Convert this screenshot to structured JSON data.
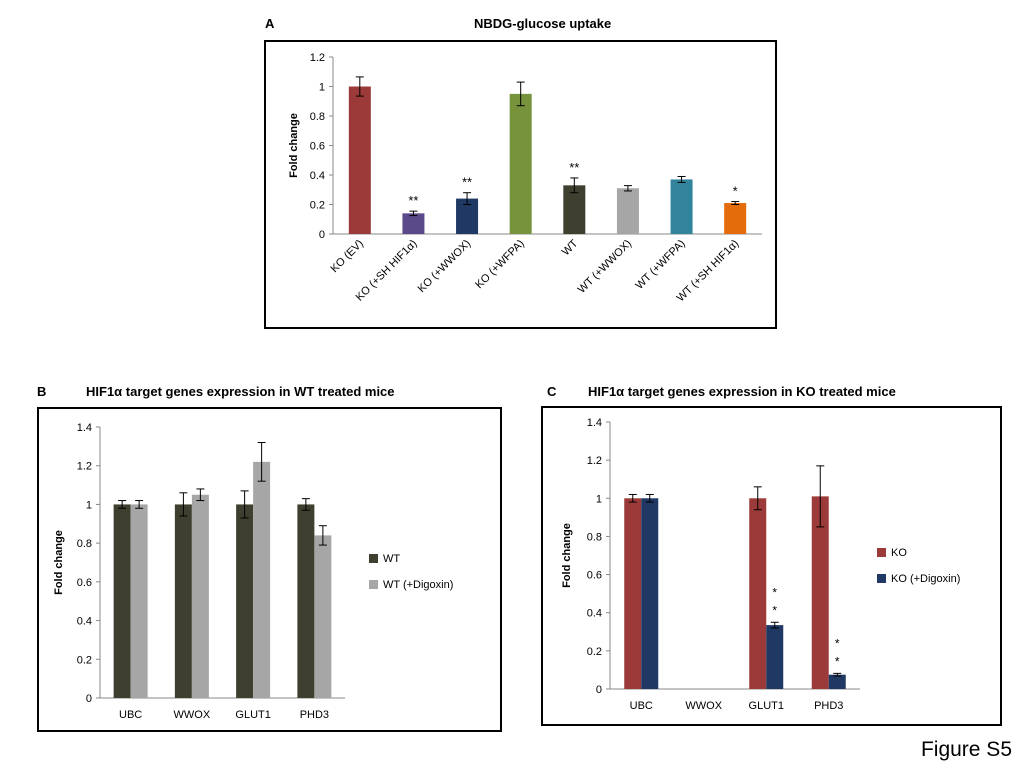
{
  "figure_label": "Figure S5",
  "colors": {
    "ko": "#9b3a38",
    "ko_digoxin": "#1f3864",
    "wt": "#3f3f2f",
    "wt_digoxin": "#a6a6a6",
    "sh_hif1a": "#5b4a8a",
    "wwox": "#1f3864",
    "wfpa": "#77933c",
    "wt_wfpa": "#31849b",
    "wt_sh": "#e46c0a",
    "error_bar": "#000000"
  },
  "chart_data": [
    {
      "panel": "A",
      "type": "bar",
      "title": "NBDG-glucose uptake",
      "xlabel": "",
      "ylabel": "Fold change",
      "ylim": [
        0,
        1.2
      ],
      "yticks": [
        "0",
        "0.2",
        "0.4",
        "0.6",
        "0.8",
        "1",
        "1.2"
      ],
      "grid": false,
      "categories": [
        "KO (EV)",
        "KO (+SH HIF1α)",
        "KO (+WWOX)",
        "KO (+WFPA)",
        "WT",
        "WT (+WWOX)",
        "WT (+WFPA)",
        "WT (+SH HIF1α)"
      ],
      "values": [
        1.0,
        0.14,
        0.24,
        0.95,
        0.33,
        0.31,
        0.37,
        0.21
      ],
      "errors": [
        0.065,
        0.015,
        0.04,
        0.08,
        0.05,
        0.018,
        0.02,
        0.01
      ],
      "bar_colors": [
        "#9b3a38",
        "#5b4a8a",
        "#1f3864",
        "#77933c",
        "#3f3f2f",
        "#a6a6a6",
        "#31849b",
        "#e46c0a"
      ],
      "annotations": [
        "",
        "**",
        "**",
        "",
        "**",
        "",
        "",
        "*"
      ]
    },
    {
      "panel": "B",
      "type": "bar",
      "title": "HIF1α target genes expression in WT treated mice",
      "xlabel": "",
      "ylabel": "Fold change",
      "ylim": [
        0,
        1.4
      ],
      "yticks": [
        "0",
        "0.2",
        "0.4",
        "0.6",
        "0.8",
        "1",
        "1.2",
        "1.4"
      ],
      "grid": false,
      "legend_position": "right",
      "categories": [
        "UBC",
        "WWOX",
        "GLUT1",
        "PHD3"
      ],
      "series": [
        {
          "name": "WT",
          "color": "#3f3f2f",
          "values": [
            1.0,
            1.0,
            1.0,
            1.0
          ],
          "errors": [
            0.02,
            0.06,
            0.07,
            0.03
          ]
        },
        {
          "name": "WT (+Digoxin)",
          "color": "#a6a6a6",
          "values": [
            1.0,
            1.05,
            1.22,
            0.84
          ],
          "errors": [
            0.02,
            0.03,
            0.1,
            0.05
          ]
        }
      ]
    },
    {
      "panel": "C",
      "type": "bar",
      "title": "HIF1α target genes expression in KO treated mice",
      "xlabel": "",
      "ylabel": "Fold change",
      "ylim": [
        0,
        1.4
      ],
      "yticks": [
        "0",
        "0.2",
        "0.4",
        "0.6",
        "0.8",
        "1",
        "1.2",
        "1.4"
      ],
      "grid": false,
      "legend_position": "right",
      "categories": [
        "UBC",
        "WWOX",
        "GLUT1",
        "PHD3"
      ],
      "series": [
        {
          "name": "KO",
          "color": "#9b3a38",
          "values": [
            1.0,
            0.0,
            1.0,
            1.01
          ],
          "errors": [
            0.02,
            0,
            0.06,
            0.16
          ]
        },
        {
          "name": "KO (+Digoxin)",
          "color": "#1f3864",
          "values": [
            1.0,
            0.0,
            0.335,
            0.075
          ],
          "errors": [
            0.02,
            0,
            0.015,
            0.007
          ]
        }
      ],
      "annotations": [
        {
          "category": "GLUT1",
          "series": "KO (+Digoxin)",
          "text": "*\n*"
        },
        {
          "category": "PHD3",
          "series": "KO (+Digoxin)",
          "text": "*\n*"
        }
      ]
    }
  ]
}
